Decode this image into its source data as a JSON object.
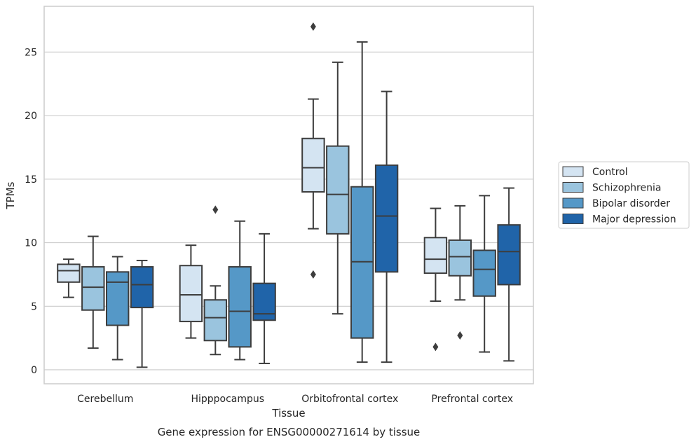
{
  "caption": "Gene expression for ENSG00000271614 by tissue",
  "chart_data": {
    "type": "box",
    "xlabel": "Tissue",
    "ylabel": "TPMs",
    "ylim": [
      -1.1,
      28.6
    ],
    "yticks": [
      0,
      5,
      10,
      15,
      20,
      25
    ],
    "grid": "horizontal",
    "legend_position": "right",
    "categories": [
      "Cerebellum",
      "Hipppocampus",
      "Orbitofrontal cortex",
      "Prefrontal cortex"
    ],
    "series": [
      {
        "name": "Control",
        "color": "#d4e4f2",
        "boxes": [
          {
            "whisker_low": 5.7,
            "q1": 6.9,
            "median": 7.8,
            "q3": 8.3,
            "whisker_high": 8.7,
            "outliers": []
          },
          {
            "whisker_low": 2.5,
            "q1": 3.8,
            "median": 5.9,
            "q3": 8.2,
            "whisker_high": 9.8,
            "outliers": []
          },
          {
            "whisker_low": 11.1,
            "q1": 14.0,
            "median": 15.9,
            "q3": 18.2,
            "whisker_high": 21.3,
            "outliers": [
              27.0,
              7.5
            ]
          },
          {
            "whisker_low": 5.4,
            "q1": 7.6,
            "median": 8.7,
            "q3": 10.4,
            "whisker_high": 12.7,
            "outliers": [
              1.8
            ]
          }
        ]
      },
      {
        "name": "Schizophrenia",
        "color": "#9ac4de",
        "boxes": [
          {
            "whisker_low": 1.7,
            "q1": 4.7,
            "median": 6.5,
            "q3": 8.1,
            "whisker_high": 10.5,
            "outliers": []
          },
          {
            "whisker_low": 1.2,
            "q1": 2.3,
            "median": 4.1,
            "q3": 5.5,
            "whisker_high": 6.6,
            "outliers": [
              12.6
            ]
          },
          {
            "whisker_low": 4.4,
            "q1": 10.7,
            "median": 13.8,
            "q3": 17.6,
            "whisker_high": 24.2,
            "outliers": []
          },
          {
            "whisker_low": 5.5,
            "q1": 7.4,
            "median": 8.9,
            "q3": 10.2,
            "whisker_high": 12.9,
            "outliers": [
              2.7
            ]
          }
        ]
      },
      {
        "name": "Bipolar disorder",
        "color": "#5598c7",
        "boxes": [
          {
            "whisker_low": 0.8,
            "q1": 3.5,
            "median": 6.9,
            "q3": 7.7,
            "whisker_high": 8.9,
            "outliers": []
          },
          {
            "whisker_low": 0.8,
            "q1": 1.8,
            "median": 4.6,
            "q3": 8.1,
            "whisker_high": 11.7,
            "outliers": []
          },
          {
            "whisker_low": 0.6,
            "q1": 2.5,
            "median": 8.5,
            "q3": 14.4,
            "whisker_high": 25.8,
            "outliers": []
          },
          {
            "whisker_low": 1.4,
            "q1": 5.8,
            "median": 7.9,
            "q3": 9.4,
            "whisker_high": 13.7,
            "outliers": []
          }
        ]
      },
      {
        "name": "Major depression",
        "color": "#2064a9",
        "boxes": [
          {
            "whisker_low": 0.2,
            "q1": 4.9,
            "median": 6.7,
            "q3": 8.1,
            "whisker_high": 8.6,
            "outliers": []
          },
          {
            "whisker_low": 0.5,
            "q1": 3.9,
            "median": 4.4,
            "q3": 6.8,
            "whisker_high": 10.7,
            "outliers": []
          },
          {
            "whisker_low": 0.6,
            "q1": 7.7,
            "median": 12.1,
            "q3": 16.1,
            "whisker_high": 21.9,
            "outliers": []
          },
          {
            "whisker_low": 0.7,
            "q1": 6.7,
            "median": 9.3,
            "q3": 11.4,
            "whisker_high": 14.3,
            "outliers": []
          }
        ]
      }
    ]
  }
}
